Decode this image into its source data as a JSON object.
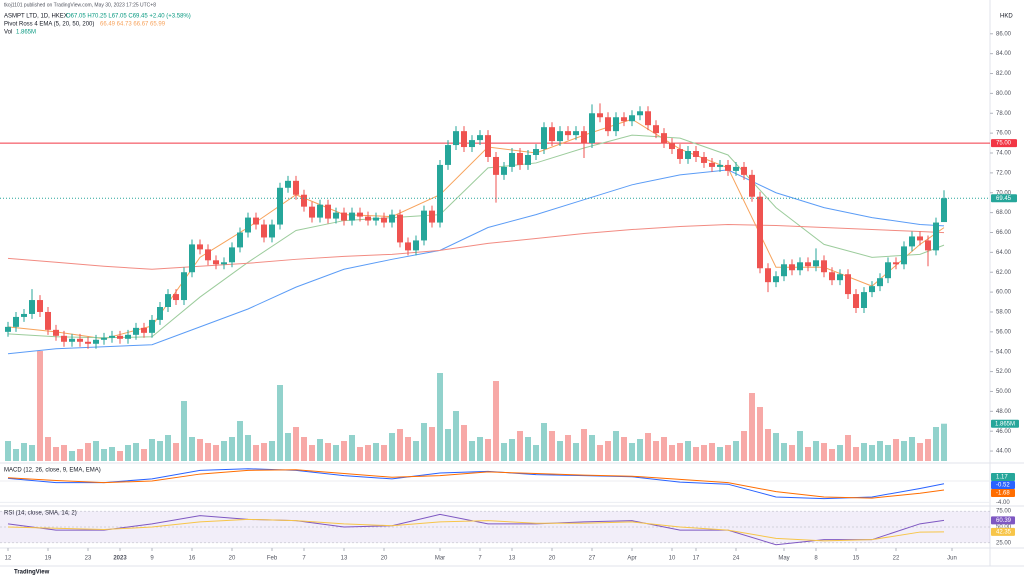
{
  "chart_data": {
    "type": "candlestick",
    "header": {
      "published": "tkoj1101 published on TradingView.com, May 30, 2023 17:25 UTC+8",
      "symbol": "ASMPT LTD, 1D, HKEX",
      "ohlc_text": "O67.05 H70.25 L67.05 C69.45 +2.40 (+3.58%)",
      "ema_title": "Pivot Ross 4 EMA (5, 20, 50, 200)",
      "ema_text": "66.49 64.73 66.67 65.99",
      "vol_title": "Vol",
      "vol_text": "1.865M"
    },
    "currency": "HKD",
    "colors": {
      "up": "#26a69a",
      "down": "#ef5350",
      "up_vol": "#92d2cc",
      "down_vol": "#f7a9a7"
    },
    "ylim": [
      43,
      89.4
    ],
    "yticks": [
      {
        "value": 44,
        "label": "44.00"
      },
      {
        "value": 46,
        "label": "46.00"
      },
      {
        "value": 48,
        "label": "48.00"
      },
      {
        "value": 50,
        "label": "50.00"
      },
      {
        "value": 52,
        "label": "52.00"
      },
      {
        "value": 54,
        "label": "54.00"
      },
      {
        "value": 56,
        "label": "56.00"
      },
      {
        "value": 58,
        "label": "58.00"
      },
      {
        "value": 60,
        "label": "60.00"
      },
      {
        "value": 62,
        "label": "62.00"
      },
      {
        "value": 64,
        "label": "64.00"
      },
      {
        "value": 66,
        "label": "66.00"
      },
      {
        "value": 68,
        "label": "68.00"
      },
      {
        "value": 70,
        "label": "70.00"
      },
      {
        "value": 72,
        "label": "72.00"
      },
      {
        "value": 74,
        "label": "74.00"
      },
      {
        "value": 76,
        "label": "76.00"
      },
      {
        "value": 78,
        "label": "78.00"
      },
      {
        "value": 80,
        "label": "80.00"
      },
      {
        "value": 82,
        "label": "82.00"
      },
      {
        "value": 84,
        "label": "84.00"
      },
      {
        "value": 86,
        "label": "86.00"
      }
    ],
    "xticks": [
      {
        "value": 0,
        "label": "12"
      },
      {
        "value": 5,
        "label": "19"
      },
      {
        "value": 10,
        "label": "23"
      },
      {
        "value": 14,
        "label": "2023"
      },
      {
        "value": 18,
        "label": "9"
      },
      {
        "value": 23,
        "label": "16"
      },
      {
        "value": 28,
        "label": "20"
      },
      {
        "value": 33,
        "label": "Feb"
      },
      {
        "value": 37,
        "label": "7"
      },
      {
        "value": 42,
        "label": "13"
      },
      {
        "value": 47,
        "label": "20"
      },
      {
        "value": 54,
        "label": "Mar"
      },
      {
        "value": 59,
        "label": "7"
      },
      {
        "value": 63,
        "label": "13"
      },
      {
        "value": 68,
        "label": "20"
      },
      {
        "value": 73,
        "label": "27"
      },
      {
        "value": 78,
        "label": "Apr"
      },
      {
        "value": 83,
        "label": "10"
      },
      {
        "value": 86,
        "label": "17"
      },
      {
        "value": 91,
        "label": "24"
      },
      {
        "value": 97,
        "label": "May"
      },
      {
        "value": 101,
        "label": "8"
      },
      {
        "value": 106,
        "label": "15"
      },
      {
        "value": 111,
        "label": "22"
      },
      {
        "value": 118,
        "label": "Jun"
      }
    ],
    "ohlc": [
      [
        56.0,
        57.0,
        55.5,
        56.5
      ],
      [
        56.5,
        58.0,
        56.0,
        57.5
      ],
      [
        57.5,
        58.3,
        57.0,
        57.8
      ],
      [
        57.8,
        60.3,
        57.3,
        59.2
      ],
      [
        59.2,
        59.7,
        57.5,
        58.0
      ],
      [
        58.0,
        58.5,
        55.7,
        56.2
      ],
      [
        56.2,
        56.7,
        55.1,
        55.6
      ],
      [
        55.6,
        56.1,
        54.5,
        55.0
      ],
      [
        55.0,
        55.8,
        54.5,
        55.3
      ],
      [
        55.3,
        55.8,
        54.5,
        55.0
      ],
      [
        55.0,
        55.5,
        54.3,
        54.8
      ],
      [
        54.8,
        55.7,
        54.3,
        55.2
      ],
      [
        55.2,
        55.9,
        54.7,
        55.4
      ],
      [
        55.4,
        56.1,
        54.9,
        55.6
      ],
      [
        55.6,
        56.1,
        54.8,
        55.3
      ],
      [
        55.3,
        56.2,
        54.8,
        55.7
      ],
      [
        55.7,
        56.9,
        55.2,
        56.4
      ],
      [
        56.4,
        56.9,
        55.4,
        55.9
      ],
      [
        55.9,
        57.7,
        55.4,
        57.2
      ],
      [
        57.2,
        59.0,
        56.7,
        58.5
      ],
      [
        58.5,
        60.3,
        58.0,
        59.8
      ],
      [
        59.8,
        60.3,
        58.7,
        59.2
      ],
      [
        59.2,
        62.5,
        58.7,
        62.0
      ],
      [
        62.0,
        65.3,
        61.5,
        64.8
      ],
      [
        64.8,
        65.3,
        63.8,
        64.3
      ],
      [
        64.3,
        64.8,
        62.7,
        63.2
      ],
      [
        63.2,
        63.7,
        62.3,
        62.8
      ],
      [
        62.8,
        63.5,
        62.3,
        63.0
      ],
      [
        63.0,
        65.0,
        62.5,
        64.5
      ],
      [
        64.5,
        66.5,
        64.0,
        66.0
      ],
      [
        66.0,
        68.0,
        65.5,
        67.5
      ],
      [
        67.5,
        68.0,
        66.3,
        66.8
      ],
      [
        66.8,
        67.3,
        65.0,
        65.5
      ],
      [
        65.5,
        67.3,
        65.0,
        66.8
      ],
      [
        66.8,
        71.0,
        66.3,
        70.5
      ],
      [
        70.5,
        71.7,
        70.0,
        71.2
      ],
      [
        71.2,
        71.7,
        69.3,
        69.8
      ],
      [
        69.8,
        70.3,
        68.1,
        68.6
      ],
      [
        68.6,
        69.1,
        67.0,
        67.5
      ],
      [
        67.5,
        69.3,
        67.0,
        68.8
      ],
      [
        68.8,
        69.3,
        66.9,
        67.4
      ],
      [
        67.4,
        68.5,
        66.9,
        68.0
      ],
      [
        68.0,
        68.5,
        66.7,
        67.2
      ],
      [
        67.2,
        68.5,
        66.7,
        68.0
      ],
      [
        68.0,
        68.5,
        67.1,
        67.6
      ],
      [
        67.6,
        68.1,
        66.7,
        67.2
      ],
      [
        67.2,
        68.0,
        66.7,
        67.5
      ],
      [
        67.5,
        68.0,
        66.5,
        67.0
      ],
      [
        67.0,
        68.3,
        66.5,
        67.8
      ],
      [
        67.8,
        68.3,
        64.5,
        65.0
      ],
      [
        65.0,
        65.5,
        63.7,
        64.2
      ],
      [
        64.2,
        65.7,
        63.7,
        65.2
      ],
      [
        65.2,
        68.7,
        64.7,
        68.2
      ],
      [
        68.2,
        68.7,
        66.5,
        67.0
      ],
      [
        67.0,
        73.3,
        66.5,
        72.8
      ],
      [
        72.8,
        75.3,
        72.3,
        74.8
      ],
      [
        74.8,
        76.7,
        74.3,
        76.2
      ],
      [
        76.2,
        76.7,
        74.1,
        74.6
      ],
      [
        74.6,
        75.8,
        74.1,
        75.3
      ],
      [
        75.3,
        76.3,
        74.8,
        75.8
      ],
      [
        75.8,
        76.3,
        73.1,
        73.6
      ],
      [
        73.6,
        74.1,
        69.0,
        71.8
      ],
      [
        71.8,
        73.1,
        71.3,
        72.6
      ],
      [
        72.6,
        74.5,
        72.1,
        74.0
      ],
      [
        74.0,
        74.5,
        72.3,
        72.8
      ],
      [
        72.8,
        74.3,
        72.3,
        73.8
      ],
      [
        73.8,
        74.9,
        73.3,
        74.4
      ],
      [
        74.4,
        77.1,
        73.9,
        76.6
      ],
      [
        76.6,
        77.1,
        74.7,
        75.2
      ],
      [
        75.2,
        76.7,
        74.7,
        76.2
      ],
      [
        76.2,
        76.7,
        75.3,
        75.8
      ],
      [
        75.8,
        76.7,
        75.3,
        76.2
      ],
      [
        76.2,
        76.7,
        73.5,
        75.0
      ],
      [
        75.0,
        78.9,
        74.5,
        78.0
      ],
      [
        78.0,
        79.0,
        77.1,
        77.6
      ],
      [
        77.6,
        78.1,
        75.7,
        76.2
      ],
      [
        76.2,
        78.1,
        75.7,
        77.6
      ],
      [
        77.6,
        78.1,
        76.7,
        77.2
      ],
      [
        77.2,
        78.3,
        76.7,
        77.8
      ],
      [
        77.8,
        78.7,
        77.3,
        78.2
      ],
      [
        78.2,
        78.7,
        76.3,
        76.8
      ],
      [
        76.8,
        77.3,
        75.5,
        76.0
      ],
      [
        76.0,
        76.5,
        74.5,
        75.0
      ],
      [
        75.0,
        75.5,
        73.9,
        74.4
      ],
      [
        74.4,
        74.9,
        72.9,
        73.4
      ],
      [
        73.4,
        74.7,
        72.9,
        74.2
      ],
      [
        74.2,
        74.7,
        73.1,
        73.6
      ],
      [
        73.6,
        74.1,
        72.5,
        73.0
      ],
      [
        73.0,
        73.5,
        72.1,
        72.6
      ],
      [
        72.6,
        73.3,
        72.1,
        72.8
      ],
      [
        72.8,
        73.3,
        71.7,
        72.2
      ],
      [
        72.2,
        73.1,
        71.7,
        72.6
      ],
      [
        72.6,
        73.1,
        71.3,
        71.8
      ],
      [
        71.8,
        72.3,
        69.1,
        69.6
      ],
      [
        69.6,
        70.1,
        61.9,
        62.4
      ],
      [
        62.4,
        62.9,
        60.0,
        61.0
      ],
      [
        61.0,
        62.1,
        60.5,
        61.6
      ],
      [
        61.6,
        63.3,
        61.1,
        62.8
      ],
      [
        62.8,
        63.3,
        61.7,
        62.2
      ],
      [
        62.2,
        63.5,
        61.7,
        63.0
      ],
      [
        63.0,
        63.5,
        62.1,
        62.6
      ],
      [
        62.6,
        64.4,
        62.1,
        63.2
      ],
      [
        63.2,
        63.7,
        61.5,
        62.0
      ],
      [
        62.0,
        62.5,
        60.7,
        61.2
      ],
      [
        61.2,
        62.3,
        60.7,
        61.8
      ],
      [
        61.8,
        62.3,
        59.3,
        59.8
      ],
      [
        59.8,
        60.3,
        57.9,
        58.4
      ],
      [
        58.4,
        60.5,
        57.9,
        60.0
      ],
      [
        60.0,
        61.1,
        59.5,
        60.6
      ],
      [
        60.6,
        61.9,
        60.1,
        61.4
      ],
      [
        61.4,
        63.5,
        60.9,
        63.0
      ],
      [
        63.0,
        63.5,
        62.3,
        62.8
      ],
      [
        62.8,
        65.1,
        62.3,
        64.6
      ],
      [
        64.6,
        66.1,
        64.1,
        65.6
      ],
      [
        65.6,
        66.1,
        64.7,
        65.2
      ],
      [
        65.2,
        65.7,
        62.6,
        64.2
      ],
      [
        64.2,
        67.5,
        63.7,
        67.0
      ],
      [
        67.05,
        70.25,
        67.05,
        69.45
      ]
    ],
    "volume": [
      1.0,
      0.6,
      0.9,
      0.8,
      5.5,
      1.2,
      0.7,
      0.8,
      0.5,
      0.6,
      0.9,
      1.0,
      0.6,
      0.7,
      0.5,
      0.8,
      0.9,
      0.6,
      1.1,
      1.0,
      1.3,
      0.9,
      3.0,
      1.2,
      1.1,
      0.9,
      0.8,
      1.0,
      1.2,
      2.0,
      1.3,
      0.8,
      0.9,
      1.0,
      3.8,
      1.4,
      1.7,
      1.2,
      0.8,
      1.1,
      0.9,
      0.8,
      1.0,
      1.3,
      0.7,
      0.8,
      0.9,
      0.8,
      1.4,
      1.6,
      1.2,
      1.0,
      1.9,
      1.7,
      4.4,
      1.6,
      2.5,
      1.8,
      1.0,
      1.2,
      1.1,
      4.0,
      0.9,
      1.1,
      1.5,
      1.2,
      0.8,
      1.9,
      1.5,
      1.0,
      1.3,
      0.9,
      1.6,
      1.3,
      0.8,
      1.0,
      1.5,
      1.2,
      0.9,
      1.1,
      1.4,
      1.0,
      1.2,
      0.8,
      0.9,
      1.0,
      0.7,
      0.8,
      0.9,
      0.7,
      0.8,
      1.0,
      1.5,
      3.4,
      2.7,
      1.6,
      1.4,
      0.9,
      0.8,
      1.5,
      0.7,
      1.0,
      0.9,
      0.6,
      0.8,
      1.3,
      0.7,
      0.9,
      0.8,
      1.0,
      0.8,
      1.1,
      1.0,
      1.2,
      0.9,
      1.1,
      1.7,
      1.865
    ],
    "volume_label": "1.865M",
    "hlines": [
      {
        "value": 75,
        "label": "75.00",
        "color": "#f23645"
      }
    ],
    "last_price": 69.45,
    "ema": {
      "x": [
        0,
        6,
        12,
        18,
        24,
        30,
        36,
        42,
        48,
        54,
        60,
        66,
        72,
        78,
        84,
        90,
        96,
        102,
        108,
        114,
        117
      ],
      "series": [
        {
          "name": "EMA 5",
          "color": "#f7a35c",
          "values": [
            56.5,
            56.0,
            55.3,
            56.6,
            63.5,
            66.5,
            69.8,
            67.8,
            67.6,
            69.8,
            74.6,
            74.0,
            75.8,
            77.4,
            74.4,
            72.5,
            62.5,
            62.5,
            60.6,
            64.8,
            66.49
          ]
        },
        {
          "name": "EMA 20",
          "color": "#9ccc9c",
          "values": [
            55.8,
            55.5,
            55.4,
            55.5,
            59.5,
            63.0,
            66.2,
            67.2,
            67.5,
            67.8,
            72.5,
            73.0,
            74.5,
            75.8,
            75.5,
            73.8,
            68.5,
            64.8,
            63.5,
            63.8,
            64.73
          ]
        },
        {
          "name": "EMA 50",
          "color": "#5b9cf6",
          "values": [
            53.8,
            54.3,
            54.5,
            54.7,
            56.5,
            58.3,
            60.5,
            62.3,
            63.3,
            64.2,
            66.5,
            67.8,
            69.3,
            70.8,
            71.8,
            72.3,
            70.0,
            68.5,
            67.5,
            66.8,
            66.67
          ]
        },
        {
          "name": "EMA 200",
          "color": "#f28b82",
          "values": [
            63.4,
            63.0,
            62.6,
            62.3,
            62.6,
            62.9,
            63.3,
            63.6,
            63.8,
            64.2,
            64.9,
            65.4,
            65.9,
            66.3,
            66.6,
            66.8,
            66.7,
            66.5,
            66.3,
            66.1,
            65.99
          ]
        }
      ]
    },
    "macd": {
      "title": "MACD (12, 26, close, 9, EMA, EMA)",
      "ylim": [
        -4.5,
        3
      ],
      "yticks": [
        {
          "value": 0,
          "label": "0.00"
        },
        {
          "value": -4,
          "label": "-4.00"
        }
      ],
      "x": [
        0,
        6,
        12,
        18,
        24,
        30,
        36,
        42,
        48,
        54,
        60,
        66,
        72,
        78,
        84,
        90,
        96,
        102,
        108,
        114,
        117
      ],
      "series": [
        {
          "name": "MACD",
          "color": "#2962ff",
          "values": [
            0.5,
            -0.3,
            -0.3,
            0.4,
            2.0,
            2.3,
            2.0,
            1.0,
            0.4,
            1.5,
            1.8,
            1.2,
            1.0,
            0.8,
            -0.2,
            -0.6,
            -3.0,
            -3.3,
            -3.0,
            -1.4,
            -0.52
          ]
        },
        {
          "name": "Signal",
          "color": "#ff6d00",
          "values": [
            0.6,
            0.1,
            -0.3,
            0.0,
            1.3,
            2.0,
            2.1,
            1.4,
            0.7,
            1.0,
            1.7,
            1.4,
            1.1,
            0.9,
            0.3,
            -0.3,
            -2.0,
            -3.0,
            -3.2,
            -2.3,
            -1.68
          ]
        }
      ],
      "last": [
        {
          "value": 1.17,
          "color": "#26a69a"
        },
        {
          "value": -0.52,
          "color": "#2962ff"
        },
        {
          "value": -1.68,
          "color": "#ff6d00"
        }
      ]
    },
    "rsi": {
      "title": "RSI (14, close, SMA, 14, 2)",
      "ylim": [
        20,
        80
      ],
      "yticks": [
        {
          "value": 75,
          "label": "75.00"
        },
        {
          "value": 50,
          "label": "50.00"
        },
        {
          "value": 25,
          "label": "25.00"
        }
      ],
      "x": [
        0,
        6,
        12,
        18,
        24,
        30,
        36,
        42,
        48,
        54,
        60,
        66,
        72,
        78,
        84,
        90,
        96,
        102,
        108,
        114,
        117
      ],
      "series": [
        {
          "name": "RSI",
          "color": "#7e57c2",
          "values": [
            55,
            45,
            45,
            55,
            68,
            62,
            60,
            50,
            52,
            70,
            55,
            55,
            58,
            60,
            45,
            45,
            22,
            30,
            30,
            55,
            60.39
          ]
        },
        {
          "name": "RSI-based MA",
          "color": "#f7c548",
          "values": [
            50,
            48,
            46,
            50,
            58,
            62,
            60,
            55,
            52,
            58,
            60,
            56,
            56,
            58,
            50,
            45,
            32,
            28,
            30,
            42,
            42.35
          ]
        }
      ],
      "last": [
        {
          "value": 60.39,
          "color": "#7e57c2"
        },
        {
          "value": 42.35,
          "color": "#f7c548"
        }
      ]
    },
    "footer": "TradingView"
  }
}
